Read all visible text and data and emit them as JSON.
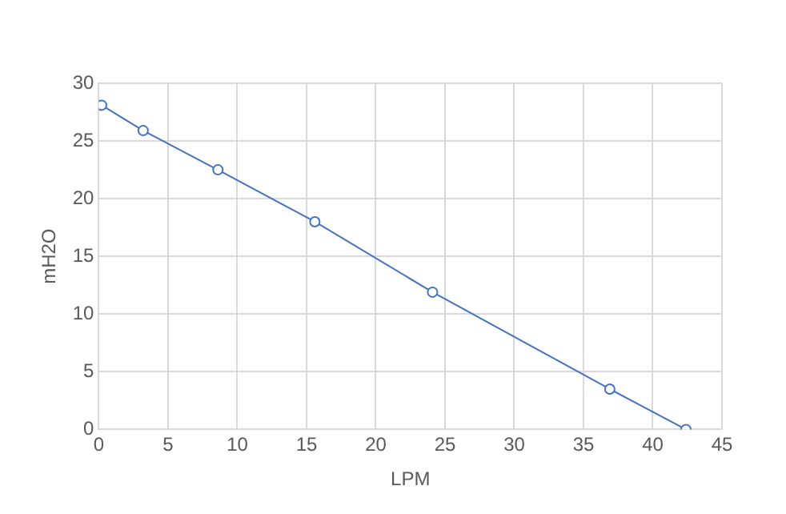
{
  "chart_data": {
    "type": "line",
    "xlabel": "LPM",
    "ylabel": "mH2O",
    "series": [
      {
        "color": "#4472c4",
        "x": [
          0.2,
          3.2,
          8.6,
          15.6,
          24.1,
          36.9,
          42.4
        ],
        "values": [
          28.1,
          25.9,
          22.5,
          18,
          11.9,
          3.5,
          0
        ]
      }
    ],
    "xlim": [
      0,
      45
    ],
    "xticks": [
      0,
      5,
      10,
      15,
      20,
      25,
      30,
      35,
      40,
      45
    ],
    "ylim": [
      0,
      30
    ],
    "yticks": [
      0,
      5,
      10,
      15,
      20,
      25,
      30
    ],
    "grid": true,
    "legend": false,
    "marker": "circle",
    "line_style": "solid"
  }
}
